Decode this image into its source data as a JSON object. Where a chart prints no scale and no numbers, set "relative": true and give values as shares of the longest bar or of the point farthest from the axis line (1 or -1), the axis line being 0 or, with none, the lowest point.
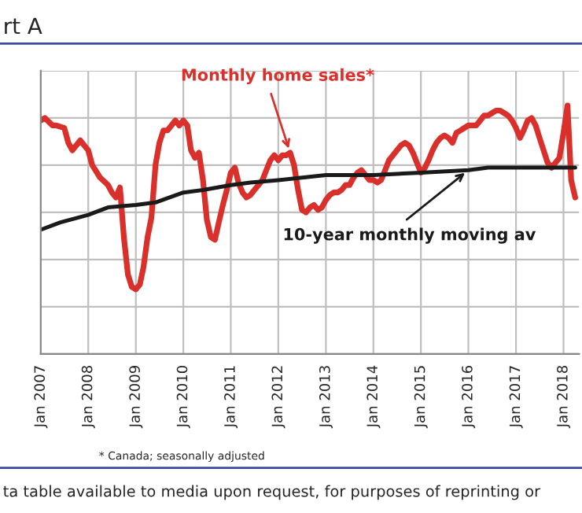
{
  "chart_data": {
    "type": "line",
    "title": "rt A",
    "relative": true,
    "grid": true,
    "legend": false,
    "xlim": [
      "2007-01",
      "2018-05"
    ],
    "xticks": [
      {
        "value": "2007-01",
        "label": "Jan 2007"
      },
      {
        "value": "2008-01",
        "label": "Jan 2008"
      },
      {
        "value": "2009-01",
        "label": "Jan 2009"
      },
      {
        "value": "2010-01",
        "label": "Jan 2010"
      },
      {
        "value": "2011-01",
        "label": "Jan 2011"
      },
      {
        "value": "2012-01",
        "label": "Jan 2012"
      },
      {
        "value": "2013-01",
        "label": "Jan 2013"
      },
      {
        "value": "2014-01",
        "label": "Jan 2014"
      },
      {
        "value": "2015-01",
        "label": "Jan 2015"
      },
      {
        "value": "2016-01",
        "label": "Jan 2016"
      },
      {
        "value": "2017-01",
        "label": "Jan 2017"
      },
      {
        "value": "2018-01",
        "label": "Jan 2018"
      }
    ],
    "series": [
      {
        "color": "#d9302b",
        "x": [
          "2007-01",
          "2007-02",
          "2007-04",
          "2007-05",
          "2007-07",
          "2007-08",
          "2007-09",
          "2007-11",
          "2007-12",
          "2008-01",
          "2008-02",
          "2008-04",
          "2008-06",
          "2008-07",
          "2008-08",
          "2008-09",
          "2008-10",
          "2008-11",
          "2008-12",
          "2009-01",
          "2009-02",
          "2009-03",
          "2009-04",
          "2009-05",
          "2009-06",
          "2009-07",
          "2009-08",
          "2009-09",
          "2009-10",
          "2009-11",
          "2009-12",
          "2010-01",
          "2010-02",
          "2010-03",
          "2010-04",
          "2010-05",
          "2010-06",
          "2010-07",
          "2010-08",
          "2010-09",
          "2010-10",
          "2010-11",
          "2010-12",
          "2011-01",
          "2011-02",
          "2011-03",
          "2011-04",
          "2011-05",
          "2011-06",
          "2011-07",
          "2011-08",
          "2011-09",
          "2011-10",
          "2011-11",
          "2011-12",
          "2012-01",
          "2012-02",
          "2012-03",
          "2012-04",
          "2012-05",
          "2012-06",
          "2012-07",
          "2012-08",
          "2012-09",
          "2012-10",
          "2012-11",
          "2012-12",
          "2013-01",
          "2013-02",
          "2013-03",
          "2013-04",
          "2013-05",
          "2013-06",
          "2013-07",
          "2013-08",
          "2013-09",
          "2013-10",
          "2013-11",
          "2013-12",
          "2014-01",
          "2014-02",
          "2014-03",
          "2014-04",
          "2014-05",
          "2014-06",
          "2014-07",
          "2014-08",
          "2014-09",
          "2014-10",
          "2014-11",
          "2014-12",
          "2015-01",
          "2015-02",
          "2015-03",
          "2015-04",
          "2015-05",
          "2015-06",
          "2015-07",
          "2015-08",
          "2015-09",
          "2015-10",
          "2015-11",
          "2015-12",
          "2016-01",
          "2016-02",
          "2016-03",
          "2016-04",
          "2016-05",
          "2016-06",
          "2016-07",
          "2016-08",
          "2016-09",
          "2016-10",
          "2016-11",
          "2016-12",
          "2017-01",
          "2017-02",
          "2017-03",
          "2017-04",
          "2017-05",
          "2017-06",
          "2017-07",
          "2017-08",
          "2017-09",
          "2017-10",
          "2017-11",
          "2017-12",
          "2018-01",
          "2018-02",
          "2018-03",
          "2018-04"
        ],
        "values": [
          0.94,
          0.95,
          0.92,
          0.92,
          0.91,
          0.85,
          0.82,
          0.86,
          0.84,
          0.82,
          0.76,
          0.71,
          0.68,
          0.65,
          0.63,
          0.67,
          0.47,
          0.32,
          0.27,
          0.26,
          0.28,
          0.35,
          0.47,
          0.55,
          0.76,
          0.85,
          0.9,
          0.9,
          0.92,
          0.94,
          0.92,
          0.94,
          0.92,
          0.82,
          0.79,
          0.81,
          0.7,
          0.54,
          0.47,
          0.46,
          0.53,
          0.6,
          0.66,
          0.73,
          0.75,
          0.69,
          0.65,
          0.63,
          0.64,
          0.66,
          0.68,
          0.7,
          0.74,
          0.78,
          0.8,
          0.78,
          0.8,
          0.8,
          0.81,
          0.76,
          0.66,
          0.58,
          0.57,
          0.59,
          0.6,
          0.58,
          0.59,
          0.62,
          0.64,
          0.65,
          0.65,
          0.66,
          0.68,
          0.68,
          0.71,
          0.73,
          0.74,
          0.72,
          0.7,
          0.7,
          0.69,
          0.7,
          0.74,
          0.78,
          0.8,
          0.82,
          0.84,
          0.85,
          0.84,
          0.81,
          0.77,
          0.73,
          0.75,
          0.78,
          0.82,
          0.85,
          0.87,
          0.88,
          0.87,
          0.85,
          0.89,
          0.9,
          0.91,
          0.92,
          0.92,
          0.92,
          0.94,
          0.96,
          0.96,
          0.97,
          0.98,
          0.98,
          0.97,
          0.96,
          0.94,
          0.91,
          0.87,
          0.9,
          0.94,
          0.95,
          0.92,
          0.87,
          0.82,
          0.77,
          0.75,
          0.77,
          0.79,
          0.89,
          1,
          0.7,
          0.63
        ]
      },
      {
        "color": "#1a1a1a",
        "x": [
          "2007-01",
          "2007-06",
          "2008-01",
          "2008-06",
          "2009-01",
          "2009-06",
          "2010-01",
          "2010-06",
          "2011-01",
          "2011-06",
          "2012-01",
          "2013-01",
          "2014-01",
          "2015-01",
          "2016-01",
          "2016-06",
          "2017-01",
          "2017-06",
          "2018-01",
          "2018-04"
        ],
        "values": [
          0.5,
          0.53,
          0.56,
          0.59,
          0.6,
          0.61,
          0.65,
          0.66,
          0.68,
          0.69,
          0.7,
          0.72,
          0.72,
          0.73,
          0.74,
          0.75,
          0.75,
          0.75,
          0.75,
          0.75
        ]
      }
    ],
    "annotations": [
      {
        "text": "Monthly home sales*",
        "x": "2012-04",
        "y": 0.81
      },
      {
        "text": "10-year monthly moving av",
        "x": "2016-01",
        "y": 0.74
      },
      "* Canada; seasonally adjusted",
      "ta table available to media upon request, for purposes of reprinting or"
    ]
  }
}
